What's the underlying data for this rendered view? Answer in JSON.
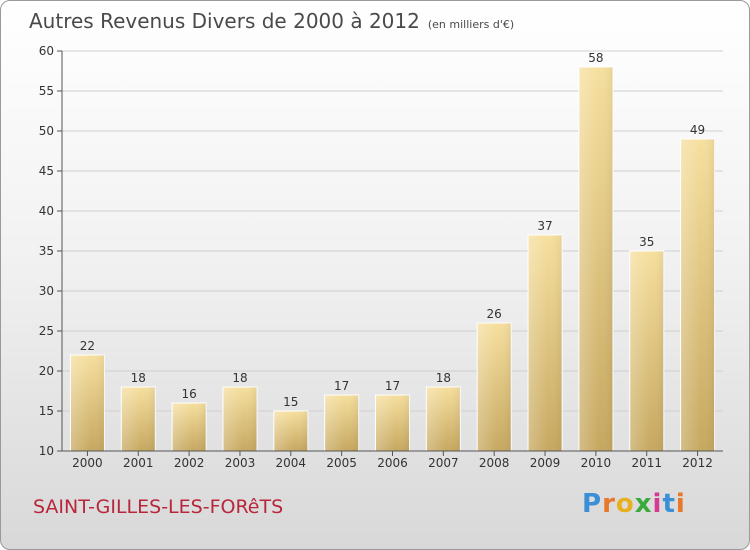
{
  "title": "Autres Revenus Divers de 2000 à 2012",
  "title_unit": "(en milliers d'€)",
  "location": "SAINT-GILLES-LES-FORêTS",
  "logo": {
    "text": "Proxiti",
    "letter_colors": [
      "#3a8fd6",
      "#e8762b",
      "#e8b020",
      "#3aaa3a",
      "#d63a8f",
      "#3a8fd6",
      "#e8762b"
    ]
  },
  "colors": {
    "bar_light": "#f5dc98",
    "bar_dark": "#c8aa60",
    "grid": "#cfcfcf",
    "axis": "#555555"
  },
  "chart_data": {
    "type": "bar",
    "categories": [
      "2000",
      "2001",
      "2002",
      "2003",
      "2004",
      "2005",
      "2006",
      "2007",
      "2008",
      "2009",
      "2010",
      "2011",
      "2012"
    ],
    "values": [
      22,
      18,
      16,
      18,
      15,
      17,
      17,
      18,
      26,
      37,
      58,
      35,
      49
    ],
    "ylim": [
      10,
      60
    ],
    "yticks": [
      10,
      15,
      20,
      25,
      30,
      35,
      40,
      45,
      50,
      55,
      60
    ],
    "grid": true
  }
}
